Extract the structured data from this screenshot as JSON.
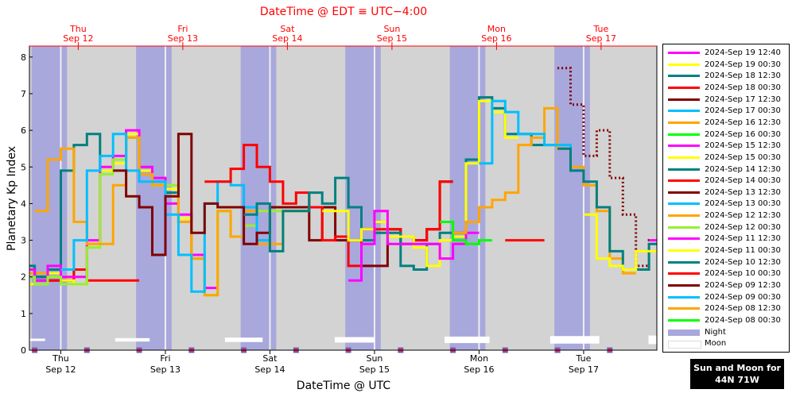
{
  "chart_data": {
    "type": "line",
    "title": "DateTime @ EDT ≡ UTC−4:00",
    "xlabel": "DateTime @ UTC",
    "ylabel": "Planetary Kp Index",
    "ylim": [
      0,
      8.3
    ],
    "yticks": [
      "0",
      "1",
      "2",
      "3",
      "4",
      "5",
      "6",
      "7",
      "8"
    ],
    "x_unit": "days since 2024-09-11 00:00 UTC",
    "xlim": [
      0.7,
      6.7
    ],
    "bottom_day_labels": [
      {
        "x": 1.0,
        "day": "Thu",
        "date": "Sep 12"
      },
      {
        "x": 2.0,
        "day": "Fri",
        "date": "Sep 13"
      },
      {
        "x": 3.0,
        "day": "Sat",
        "date": "Sep 14"
      },
      {
        "x": 4.0,
        "day": "Sun",
        "date": "Sep 15"
      },
      {
        "x": 5.0,
        "day": "Mon",
        "date": "Sep 16"
      },
      {
        "x": 6.0,
        "day": "Tue",
        "date": "Sep 17"
      }
    ],
    "top_day_labels": [
      {
        "x": 1.167,
        "day": "Thu",
        "date": "Sep 12"
      },
      {
        "x": 2.167,
        "day": "Fri",
        "date": "Sep 13"
      },
      {
        "x": 3.167,
        "day": "Sat",
        "date": "Sep 14"
      },
      {
        "x": 4.167,
        "day": "Sun",
        "date": "Sep 15"
      },
      {
        "x": 5.167,
        "day": "Mon",
        "date": "Sep 16"
      },
      {
        "x": 6.167,
        "day": "Tue",
        "date": "Sep 17"
      }
    ],
    "night_intervals": [
      [
        0.72,
        1.06
      ],
      [
        1.72,
        2.06
      ],
      [
        2.72,
        3.06
      ],
      [
        3.72,
        4.06
      ],
      [
        4.72,
        5.06
      ],
      [
        5.72,
        6.06
      ]
    ],
    "moon_intervals": [
      [
        0.7,
        0.85
      ],
      [
        1.52,
        1.85
      ],
      [
        2.57,
        2.93
      ],
      [
        3.62,
        4.0
      ],
      [
        4.67,
        5.1
      ],
      [
        5.68,
        6.15
      ],
      [
        6.62,
        6.7
      ]
    ],
    "legend": {
      "night_label": "Night",
      "moon_label": "Moon",
      "night_color": "#a8a8dc",
      "moon_color": "#ffffff"
    },
    "badge": {
      "line1": "Sun and Moon for",
      "line2": "44N 71W"
    },
    "series": [
      {
        "name": "2024-Sep 19 12:40",
        "color": "#ff00ff",
        "x": [
          6.625,
          6.75
        ],
        "y": [
          3.0,
          3.0
        ]
      },
      {
        "name": "2024-Sep 19 00:30",
        "color": "#ffff00",
        "x": [
          6.0,
          6.125,
          6.25,
          6.375,
          6.5,
          6.625
        ],
        "y": [
          3.7,
          2.5,
          2.3,
          2.2,
          2.7,
          2.7
        ]
      },
      {
        "name": "2024-Sep 18 12:30",
        "color": "#008080",
        "x": [
          5.75,
          5.875,
          6.0,
          6.125,
          6.25,
          6.375,
          6.5,
          6.625
        ],
        "y": [
          5.5,
          4.9,
          4.6,
          3.9,
          2.7,
          2.2,
          2.2,
          2.9
        ]
      },
      {
        "name": "2024-Sep 18 00:30",
        "color": "#ff0000",
        "x": [
          5.25,
          5.375,
          5.5
        ],
        "y": [
          3.0,
          3.0,
          3.0
        ]
      },
      {
        "name": "2024-Sep 17 12:30",
        "color": "#800000",
        "x": [
          5.75,
          5.875,
          6.0,
          6.125,
          6.25,
          6.375,
          6.5,
          6.625
        ],
        "y": [
          7.7,
          6.7,
          5.3,
          6.0,
          4.7,
          3.7,
          2.3,
          3.0
        ],
        "dashed": true
      },
      {
        "name": "2024-Sep 17 00:30",
        "color": "#00bfff",
        "x": [
          5.0,
          5.125,
          5.25,
          5.375,
          5.5,
          5.625,
          5.75,
          5.875
        ],
        "y": [
          5.1,
          6.8,
          6.5,
          5.9,
          5.9,
          5.6,
          5.6,
          4.9
        ]
      },
      {
        "name": "2024-Sep 16 12:30",
        "color": "#ffa500",
        "x": [
          4.75,
          4.875,
          5.0,
          5.125,
          5.25,
          5.375,
          5.5,
          5.625,
          5.75,
          5.875,
          6.0,
          6.125,
          6.25,
          6.375
        ],
        "y": [
          3.2,
          3.5,
          3.9,
          4.1,
          4.3,
          5.6,
          5.8,
          6.6,
          5.5,
          5.0,
          4.5,
          3.8,
          2.5,
          2.1
        ]
      },
      {
        "name": "2024-Sep 16 00:30",
        "color": "#00ff00",
        "x": [
          4.625,
          4.75,
          4.875,
          5.0
        ],
        "y": [
          3.5,
          3.0,
          2.9,
          3.0
        ]
      },
      {
        "name": "2024-Sep 15 12:30",
        "color": "#ff00ff",
        "x": [
          3.75,
          3.875,
          4.0,
          4.125,
          4.25,
          4.375,
          4.5,
          4.625,
          4.75,
          4.875
        ],
        "y": [
          1.9,
          2.9,
          3.8,
          2.9,
          2.9,
          2.9,
          2.9,
          2.5,
          2.9,
          3.2
        ]
      },
      {
        "name": "2024-Sep 15 00:30",
        "color": "#ffff00",
        "x": [
          3.5,
          3.625,
          3.75,
          3.875,
          4.0,
          4.125,
          4.25,
          4.375,
          4.5,
          4.625,
          4.75,
          4.875,
          5.0,
          5.125,
          5.25
        ],
        "y": [
          3.8,
          3.8,
          3.0,
          3.3,
          3.5,
          3.1,
          3.1,
          2.8,
          2.3,
          3.0,
          3.1,
          5.1,
          6.8,
          6.5,
          5.8
        ]
      },
      {
        "name": "2024-Sep 14 12:30",
        "color": "#008080",
        "x": [
          2.75,
          2.875,
          3.0,
          3.125,
          3.25,
          3.375,
          3.5,
          3.625,
          3.75,
          3.875,
          4.0,
          4.125,
          4.25,
          4.375,
          4.5,
          4.625,
          4.75,
          4.875,
          5.0,
          5.125,
          5.25,
          5.375,
          5.5,
          5.625
        ],
        "y": [
          3.7,
          4.0,
          2.7,
          3.8,
          3.8,
          4.3,
          4.0,
          4.7,
          3.9,
          3.0,
          3.2,
          3.2,
          2.3,
          2.2,
          2.9,
          3.2,
          3.2,
          5.2,
          6.9,
          6.6,
          5.9,
          5.9,
          5.6,
          5.6
        ]
      },
      {
        "name": "2024-Sep 14 00:30",
        "color": "#ff0000",
        "x": [
          2.375,
          2.5,
          2.625,
          2.75,
          2.875,
          3.0,
          3.125,
          3.25,
          3.375,
          3.5,
          3.625,
          3.75,
          3.875,
          4.0,
          4.125,
          4.25,
          4.375,
          4.5,
          4.625
        ],
        "y": [
          4.6,
          4.6,
          4.95,
          5.6,
          5.0,
          4.6,
          4.0,
          4.3,
          3.9,
          3.0,
          3.1,
          2.3,
          3.3,
          3.3,
          3.3,
          3.1,
          3.0,
          3.3,
          4.6
        ]
      },
      {
        "name": "2024-Sep 13 12:30",
        "color": "#800000",
        "x": [
          1.5,
          1.625,
          1.75,
          1.875,
          2.0,
          2.125,
          2.25,
          2.375,
          2.5,
          2.625,
          2.75,
          2.875,
          3.0,
          3.125,
          3.25,
          3.375,
          3.5,
          3.625,
          3.75,
          3.875,
          4.0,
          4.125,
          4.25,
          4.375,
          4.5,
          4.625
        ],
        "y": [
          4.9,
          4.2,
          3.9,
          2.6,
          4.2,
          5.9,
          3.2,
          4.0,
          3.9,
          3.9,
          2.9,
          3.2,
          3.9,
          3.9,
          3.9,
          3.0,
          3.9,
          3.0,
          3.0,
          2.3,
          2.3,
          3.3,
          2.9,
          3.0,
          3.3,
          4.6
        ]
      },
      {
        "name": "2024-Sep 13 00:30",
        "color": "#00bfff",
        "x": [
          1.0,
          1.125,
          1.25,
          1.375,
          1.5,
          1.625,
          1.75,
          1.875,
          2.0,
          2.125,
          2.25,
          2.375,
          2.5,
          2.625,
          2.75,
          2.875
        ],
        "y": [
          2.2,
          3.0,
          4.9,
          5.3,
          5.9,
          4.9,
          4.6,
          4.6,
          3.7,
          2.6,
          1.6,
          4.0,
          4.6,
          4.5,
          3.9,
          3.0
        ]
      },
      {
        "name": "2024-Sep 12 12:30",
        "color": "#ffa500",
        "x": [
          0.75,
          0.875,
          1.0,
          1.125,
          1.25,
          1.375,
          1.5,
          1.625,
          1.75,
          1.875,
          2.0,
          2.125,
          2.25,
          2.375,
          2.5,
          2.625,
          2.75,
          2.875,
          3.0,
          3.125,
          3.25
        ],
        "y": [
          3.8,
          5.2,
          5.5,
          3.5,
          2.9,
          2.9,
          4.5,
          5.8,
          4.8,
          4.5,
          4.2,
          3.5,
          2.5,
          1.5,
          3.8,
          3.1,
          3.8,
          2.9,
          2.9,
          3.8,
          3.8
        ]
      },
      {
        "name": "2024-Sep 12 00:30",
        "color": "#99ee33",
        "x": [
          0.625,
          0.75,
          0.875,
          1.0,
          1.125,
          1.25,
          1.375,
          1.5,
          1.625,
          1.75,
          1.875,
          2.0,
          2.125,
          2.25,
          2.375,
          2.5,
          2.625,
          2.75,
          2.875,
          3.0,
          3.125,
          3.25
        ],
        "y": [
          2.0,
          1.8,
          2.0,
          1.8,
          1.8,
          2.8,
          4.8,
          5.2,
          5.8,
          4.8,
          4.5,
          4.5,
          3.5,
          2.5,
          1.5,
          3.8,
          3.1,
          3.4,
          3.8,
          3.8,
          3.8,
          3.8
        ]
      },
      {
        "name": "2024-Sep 11 12:30",
        "color": "#ff00ff",
        "x": [
          0.625,
          0.75,
          0.875,
          1.0,
          1.125,
          1.25,
          1.375,
          1.5,
          1.625,
          1.75,
          1.875,
          2.0,
          2.125,
          2.25,
          2.375
        ],
        "y": [
          2.2,
          1.9,
          2.3,
          2.0,
          2.0,
          3.0,
          5.0,
          5.3,
          6.0,
          5.0,
          4.7,
          4.0,
          3.7,
          2.6,
          1.7
        ]
      },
      {
        "name": "2024-Sep 11 00:30",
        "color": "#ffff00",
        "x": [
          0.625,
          0.75,
          0.875,
          1.0,
          1.125,
          1.25,
          1.375,
          1.5,
          1.625,
          1.75,
          1.875,
          2.0,
          2.125,
          2.25
        ],
        "y": [
          1.8,
          1.8,
          2.1,
          1.9,
          1.8,
          2.9,
          4.9,
          5.1,
          5.9,
          4.9,
          4.5,
          4.4,
          3.6,
          2.5
        ]
      },
      {
        "name": "2024-Sep 10 12:30",
        "color": "#008080",
        "x": [
          0.625,
          0.75,
          0.875,
          1.0,
          1.125,
          1.25,
          1.375,
          1.5,
          1.625,
          1.75,
          1.875,
          2.0,
          2.125,
          2.25
        ],
        "y": [
          2.3,
          2.0,
          2.2,
          4.9,
          5.6,
          5.9,
          4.9,
          5.2,
          5.8,
          4.8,
          4.5,
          4.3,
          3.5,
          2.5
        ]
      },
      {
        "name": "2024-Sep 10 00:30",
        "color": "#ff0000",
        "x": [
          0.625,
          0.75,
          0.875,
          1.0,
          1.125,
          1.25,
          1.375,
          1.5,
          1.625
        ],
        "y": [
          2.2,
          1.9,
          1.9,
          1.9,
          2.2,
          1.9,
          1.9,
          1.9,
          1.9
        ]
      },
      {
        "name": "2024-Sep 09 12:30",
        "color": "#800000",
        "x": [
          0.625,
          0.75,
          0.875,
          1.0,
          1.125
        ],
        "y": [
          2.2,
          2.0,
          1.9,
          1.9,
          2.2
        ]
      },
      {
        "name": "2024-Sep 09 00:30",
        "color": "#00bfff",
        "x": [
          0.625,
          0.75
        ],
        "y": [
          2.0,
          2.0
        ]
      },
      {
        "name": "2024-Sep 08 12:30",
        "color": "#ffa500",
        "x": [
          0.625,
          0.75
        ],
        "y": [
          2.1,
          2.1
        ]
      },
      {
        "name": "2024-Sep 08 00:30",
        "color": "#00ff00",
        "x": [
          0.625,
          0.75
        ],
        "y": [
          2.0,
          2.0
        ]
      }
    ]
  }
}
